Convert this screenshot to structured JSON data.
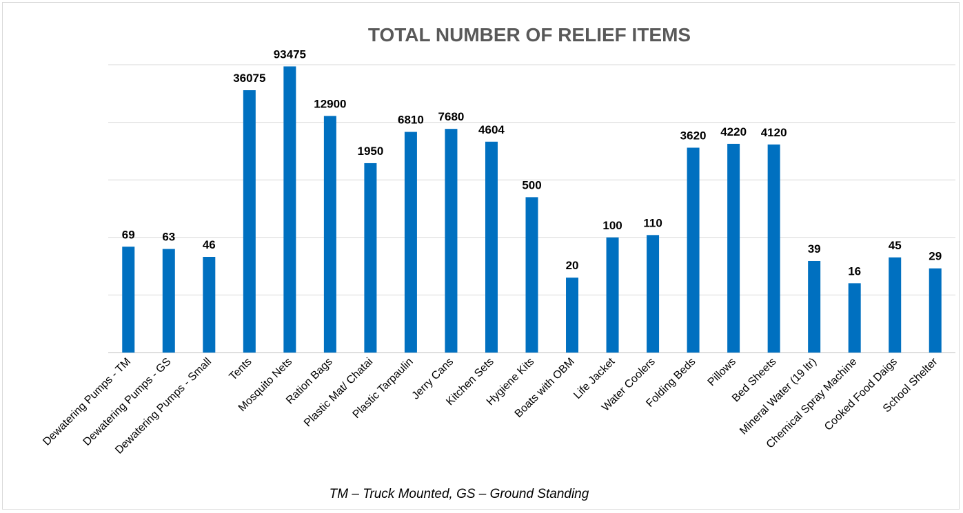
{
  "colors": {
    "bar": "#0070c0",
    "grid": "#d9d9d9",
    "axis": "#bfbfbf"
  },
  "chart_data": {
    "type": "bar",
    "title": "TOTAL NUMBER OF RELIEF ITEMS",
    "note": "TM – Truck Mounted, GS – Ground Standing",
    "grid": true,
    "legend": "none",
    "yscale": "log",
    "ylim": [
      1,
      100000
    ],
    "categories": [
      "Dewatering Pumps - TM",
      "Dewatering Pumps - GS",
      "Dewatering Pumps - Small",
      "Tents",
      "Mosquito Nets",
      "Ration Bags",
      "Plastic Mat/ Chatai",
      "Plastic Tarpaulin",
      "Jerry Cans",
      "Kitchen Sets",
      "Hygiene Kits",
      "Boats with OBM",
      "Life Jacket",
      "Water Coolers",
      "Folding Beds",
      "Pillows",
      "Bed Sheets",
      "Mineral Water (19 ltr)",
      "Chemical Spray Machine",
      "Cooked Food Daigs",
      "School Shelter"
    ],
    "values": [
      69,
      63,
      46,
      36075,
      93475,
      12900,
      1950,
      6810,
      7680,
      4604,
      500,
      20,
      100,
      110,
      3620,
      4220,
      4120,
      39,
      16,
      45,
      29
    ],
    "labels": [
      "69",
      "63",
      "46",
      "36075",
      "93475",
      "12900",
      "1950",
      "6810",
      "7680",
      "4604",
      "500",
      "20",
      "100",
      "110",
      "3620",
      "4220",
      "4120",
      "39",
      "16",
      "45",
      "29"
    ]
  }
}
